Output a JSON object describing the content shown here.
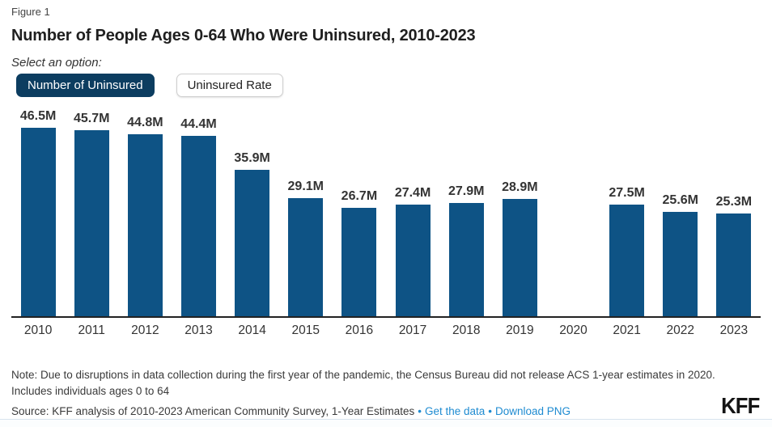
{
  "figure_label": "Figure 1",
  "title": "Number of People Ages 0-64 Who Were Uninsured, 2010-2023",
  "select_label": "Select an option:",
  "toggle": {
    "selected_label": "Number of Uninsured",
    "unselected_label": "Uninsured Rate"
  },
  "chart_data": {
    "type": "bar",
    "title": "Number of People Ages 0-64 Who Were Uninsured, 2010-2023",
    "categories": [
      "2010",
      "2011",
      "2012",
      "2013",
      "2014",
      "2015",
      "2016",
      "2017",
      "2018",
      "2019",
      "2020",
      "2021",
      "2022",
      "2023"
    ],
    "values": [
      46.5,
      45.7,
      44.8,
      44.4,
      35.9,
      29.1,
      26.7,
      27.4,
      27.9,
      28.9,
      null,
      27.5,
      25.6,
      25.3
    ],
    "value_labels": [
      "46.5M",
      "45.7M",
      "44.8M",
      "44.4M",
      "35.9M",
      "29.1M",
      "26.7M",
      "27.4M",
      "27.9M",
      "28.9M",
      "",
      "27.5M",
      "25.6M",
      "25.3M"
    ],
    "unit": "millions of people",
    "xlabel": "",
    "ylabel": "",
    "ylim": [
      0,
      46.5
    ],
    "grid": false,
    "legend": "none",
    "bar_color": "#0E5385",
    "missing_data_note": "No bar for 2020 (ACS 1-year estimates not released)"
  },
  "footer": {
    "note_line1": "Note: Due to disruptions in data collection during the first year of the pandemic, the Census Bureau did not release ACS 1-year estimates in 2020.",
    "note_line2": "Includes individuals ages 0 to 64",
    "source_text": "Source: KFF analysis of 2010-2023 American Community Survey, 1-Year Estimates",
    "separator": "•",
    "get_data_link": "Get the data",
    "download_link": "Download PNG",
    "logo_text": "KFF"
  },
  "colors": {
    "bar": "#0E5385",
    "selected_button_bg": "#0C3D60",
    "link_blue": "#1E8BD1",
    "axis_line": "#222222"
  }
}
